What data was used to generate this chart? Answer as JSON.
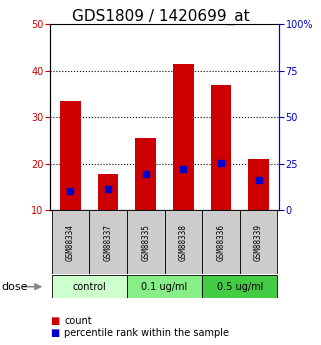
{
  "title": "GDS1809 / 1420699_at",
  "samples": [
    "GSM88334",
    "GSM88337",
    "GSM88335",
    "GSM88338",
    "GSM88336",
    "GSM88339"
  ],
  "group_colors": [
    "#ccffcc",
    "#88ee88",
    "#44cc44"
  ],
  "count_values": [
    33.5,
    17.8,
    25.5,
    41.5,
    37.0,
    21.0
  ],
  "percentile_values": [
    10.5,
    11.5,
    19.5,
    22.0,
    25.5,
    16.5
  ],
  "bar_bottom": 10,
  "ylim_left": [
    10,
    50
  ],
  "ylim_right": [
    0,
    100
  ],
  "yticks_left": [
    10,
    20,
    30,
    40,
    50
  ],
  "yticks_right": [
    0,
    25,
    50,
    75,
    100
  ],
  "ytick_labels_right": [
    "0",
    "25",
    "50",
    "75",
    "100%"
  ],
  "left_color": "#cc0000",
  "right_color": "#0000cc",
  "bar_color": "#cc0000",
  "dot_color": "#0000cc",
  "sample_bg_color": "#cccccc",
  "title_fontsize": 11,
  "group_spans": [
    [
      0,
      1,
      "control"
    ],
    [
      2,
      3,
      "0.1 ug/ml"
    ],
    [
      4,
      5,
      "0.5 ug/ml"
    ]
  ]
}
